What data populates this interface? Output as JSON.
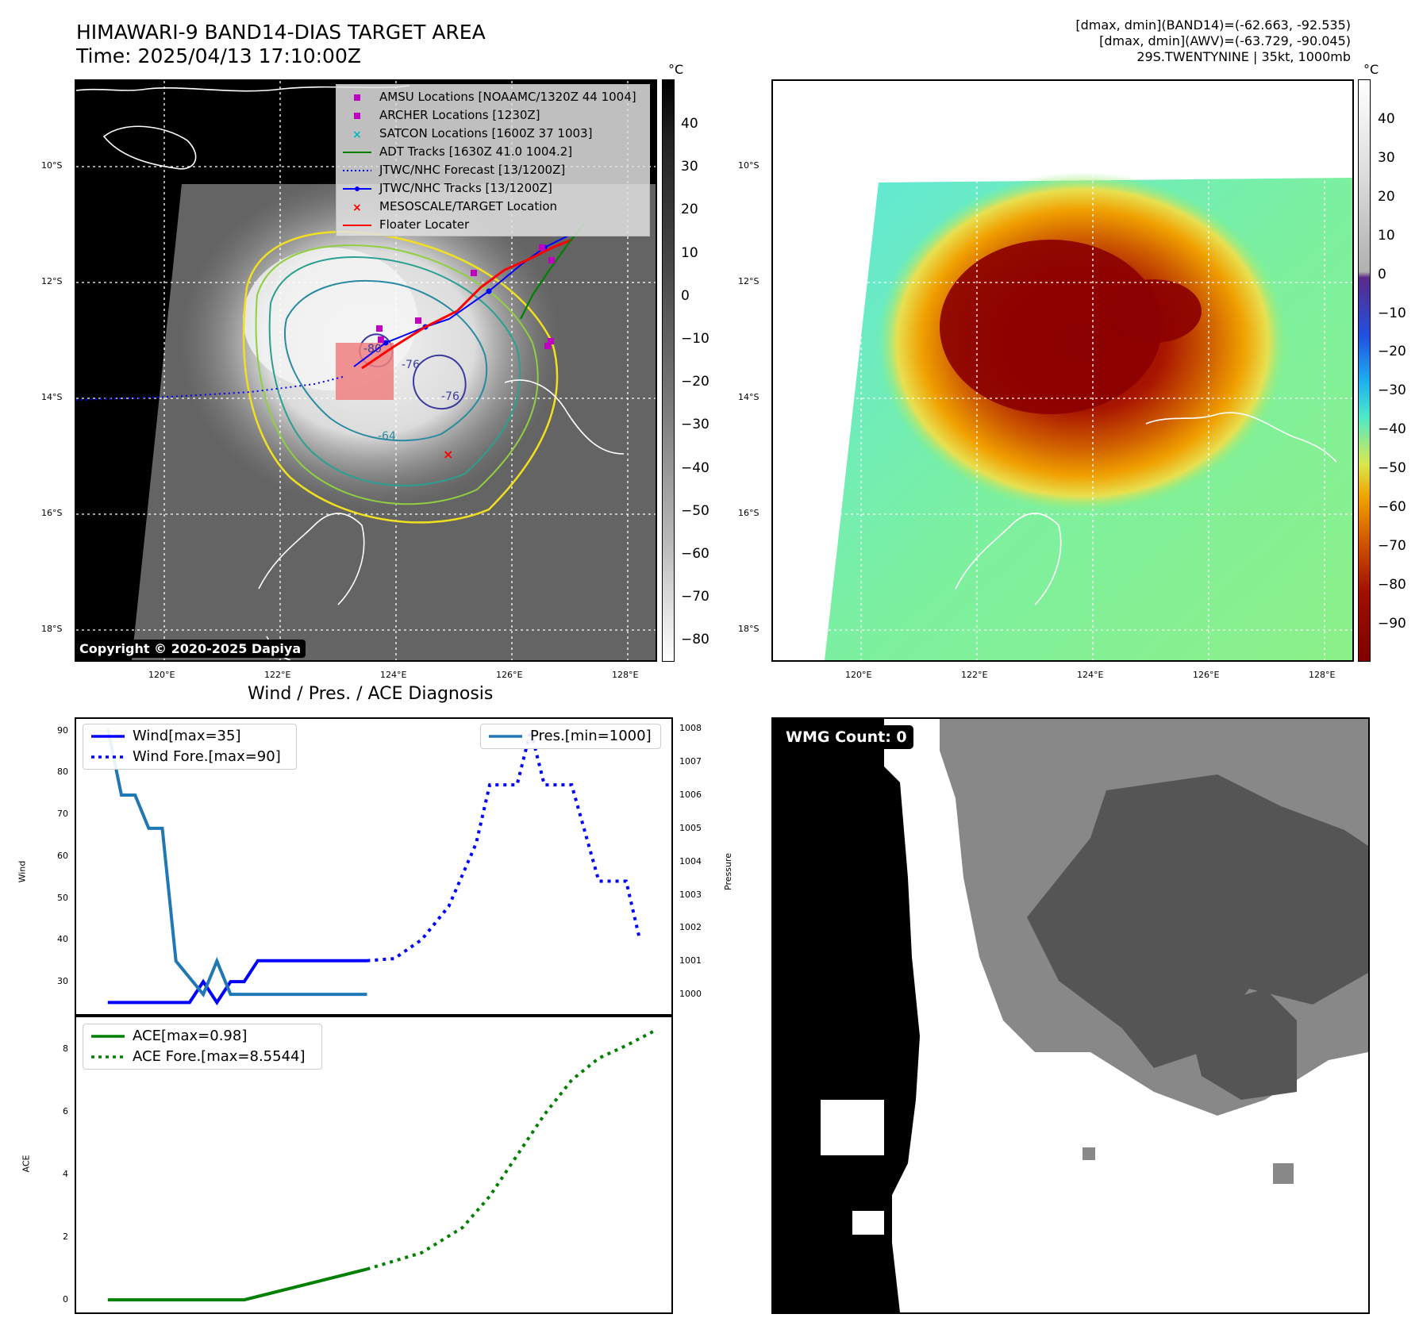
{
  "header": {
    "title_line1": "HIMAWARI-9 BAND14-DIAS TARGET AREA",
    "title_line2": "Time: 2025/04/13 17:10:00Z",
    "right_line1": "[dmax, dmin](BAND14)=(-62.663, -92.535)",
    "right_line2": "[dmax, dmin](AWV)=(-63.729, -90.045)",
    "right_line3": "29S.TWENTYNINE | 35kt, 1000mb"
  },
  "map": {
    "lat_labels": [
      "10°S",
      "12°S",
      "14°S",
      "16°S",
      "18°S"
    ],
    "lon_labels": [
      "120°E",
      "122°E",
      "124°E",
      "126°E",
      "128°E"
    ],
    "contour_labels": [
      "-80",
      "-76",
      "-76",
      "-64"
    ],
    "copyright": "Copyright © 2020-2025 Dapiya",
    "legend": [
      {
        "label": "AMSU Locations [NOAAMC/1320Z 44 1004]",
        "color": "#c000c0",
        "symbol": "square"
      },
      {
        "label": "ARCHER Locations [1230Z]",
        "color": "#c000c0",
        "symbol": "square"
      },
      {
        "label": "SATCON Locations [1600Z 37 1003]",
        "color": "#00bbbb",
        "symbol": "x"
      },
      {
        "label": "ADT Tracks [1630Z 41.0 1004.2]",
        "color": "#008000",
        "symbol": "line"
      },
      {
        "label": "JTWC/NHC Forecast [13/1200Z]",
        "color": "#0000ff",
        "symbol": "dotted"
      },
      {
        "label": "JTWC/NHC Tracks [13/1200Z]",
        "color": "#0000ff",
        "symbol": "line-dot"
      },
      {
        "label": "MESOSCALE/TARGET Location",
        "color": "#ff0000",
        "symbol": "x"
      },
      {
        "label": "Floater Locater",
        "color": "#ff0000",
        "symbol": "line"
      }
    ]
  },
  "colorbar_gray": {
    "unit": "°C",
    "ticks": [
      "40",
      "30",
      "20",
      "10",
      "0",
      "−10",
      "−20",
      "−30",
      "−40",
      "−50",
      "−60",
      "−70",
      "−80"
    ]
  },
  "colorbar_color": {
    "unit": "°C",
    "ticks": [
      "40",
      "30",
      "20",
      "10",
      "0",
      "−10",
      "−20",
      "−30",
      "−40",
      "−50",
      "−60",
      "−70",
      "−80",
      "−90"
    ]
  },
  "wmg": {
    "badge": "WMG Count: 0"
  },
  "chart_data": [
    {
      "type": "line",
      "title": "Wind / Pres. / ACE Diagnosis",
      "ylabel": "Wind",
      "y2label": "Pressure",
      "ylim": [
        23,
        92
      ],
      "y2lim": [
        999.5,
        1008.2
      ],
      "x": [
        0,
        1,
        2,
        3,
        4,
        5,
        6,
        7,
        8,
        9,
        10,
        11,
        12,
        13,
        14,
        15,
        16,
        17,
        18,
        19,
        20,
        21,
        22,
        23,
        24,
        25,
        26,
        27,
        28,
        29,
        30,
        31,
        32,
        33,
        34,
        35,
        36,
        37,
        38,
        39,
        40
      ],
      "yticks": [
        "30",
        "40",
        "50",
        "60",
        "70",
        "80",
        "90"
      ],
      "y2ticks": [
        "1000",
        "1001",
        "1002",
        "1003",
        "1004",
        "1005",
        "1006",
        "1007",
        "1008"
      ],
      "series": [
        {
          "name": "Wind[max=35]",
          "color": "#0000ff",
          "style": "solid",
          "points": [
            [
              0,
              25
            ],
            [
              1,
              25
            ],
            [
              2,
              25
            ],
            [
              3,
              25
            ],
            [
              4,
              25
            ],
            [
              5,
              25
            ],
            [
              6,
              25
            ],
            [
              7,
              30
            ],
            [
              8,
              25
            ],
            [
              9,
              30
            ],
            [
              10,
              30
            ],
            [
              11,
              35
            ],
            [
              12,
              35
            ],
            [
              13,
              35
            ],
            [
              14,
              35
            ],
            [
              15,
              35
            ],
            [
              16,
              35
            ],
            [
              17,
              35
            ],
            [
              18,
              35
            ],
            [
              19,
              35
            ]
          ]
        },
        {
          "name": "Wind Fore.[max=90]",
          "color": "#0000ff",
          "style": "dotted",
          "points": [
            [
              19,
              35
            ],
            [
              21,
              35.5
            ],
            [
              23,
              40
            ],
            [
              25,
              48
            ],
            [
              27,
              63
            ],
            [
              28,
              77
            ],
            [
              30,
              77
            ],
            [
              31,
              90
            ],
            [
              32,
              77
            ],
            [
              34,
              77
            ],
            [
              36,
              54
            ],
            [
              38,
              54
            ],
            [
              39,
              40
            ]
          ]
        },
        {
          "name": "Pres.[min=1000]",
          "color": "#1f77b4",
          "style": "solid",
          "axis": "right",
          "points": [
            [
              0,
              1008
            ],
            [
              1,
              1006
            ],
            [
              2,
              1006
            ],
            [
              3,
              1005
            ],
            [
              4,
              1005
            ],
            [
              5,
              1001
            ],
            [
              6,
              1000.5
            ],
            [
              7,
              1000
            ],
            [
              8,
              1001
            ],
            [
              9,
              1000
            ],
            [
              10,
              1000
            ],
            [
              11,
              1000
            ],
            [
              12,
              1000
            ],
            [
              13,
              1000
            ],
            [
              14,
              1000
            ],
            [
              15,
              1000
            ],
            [
              16,
              1000
            ],
            [
              17,
              1000
            ],
            [
              18,
              1000
            ],
            [
              19,
              1000
            ]
          ]
        }
      ]
    },
    {
      "type": "line",
      "ylabel": "ACE",
      "ylim": [
        -0.3,
        8.9
      ],
      "yticks": [
        "0",
        "2",
        "4",
        "6",
        "8"
      ],
      "series": [
        {
          "name": "ACE[max=0.98]",
          "color": "#008000",
          "style": "solid",
          "points": [
            [
              0,
              0
            ],
            [
              10,
              0
            ],
            [
              19,
              0.98
            ]
          ]
        },
        {
          "name": "ACE Fore.[max=8.5544]",
          "color": "#008000",
          "style": "dotted",
          "points": [
            [
              19,
              0.98
            ],
            [
              23,
              1.5
            ],
            [
              26,
              2.3
            ],
            [
              28,
              3.3
            ],
            [
              30,
              4.6
            ],
            [
              32,
              5.9
            ],
            [
              34,
              7.0
            ],
            [
              36,
              7.7
            ],
            [
              38,
              8.1
            ],
            [
              40,
              8.5544
            ]
          ]
        }
      ]
    }
  ]
}
